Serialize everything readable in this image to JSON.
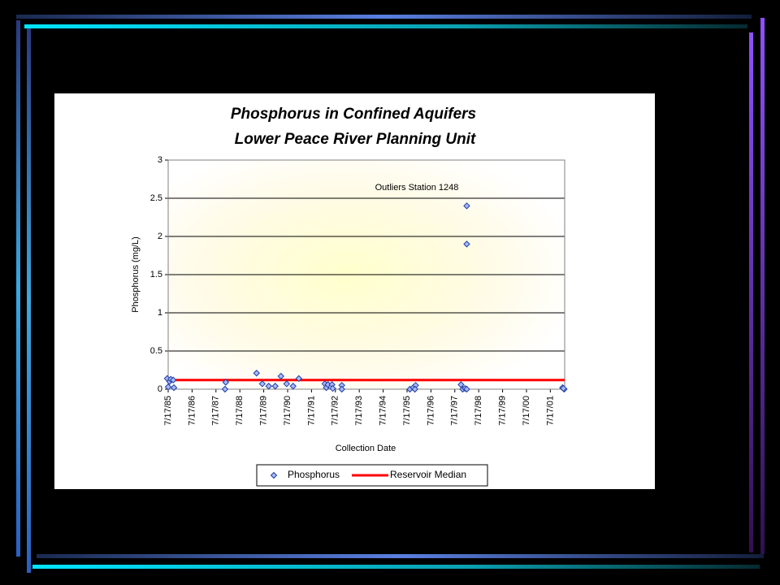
{
  "chart_data": {
    "type": "scatter",
    "title": "Phosphorus in Confined Aquifers",
    "subtitle": "Lower Peace River Planning Unit",
    "x_label": "Collection Date",
    "y_label": "Phosphorus (mg/L)",
    "annotation": "Outliers Station 1248",
    "xlim": [
      1985.54,
      2002.14
    ],
    "ylim": [
      0,
      3
    ],
    "yticks": [
      0,
      0.5,
      1,
      1.5,
      2,
      2.5,
      3
    ],
    "xticks": [
      {
        "value": 1985.54,
        "label": "7/17/85"
      },
      {
        "value": 1986.54,
        "label": "7/17/86"
      },
      {
        "value": 1987.54,
        "label": "7/17/87"
      },
      {
        "value": 1988.54,
        "label": "7/17/88"
      },
      {
        "value": 1989.54,
        "label": "7/17/89"
      },
      {
        "value": 1990.54,
        "label": "7/17/90"
      },
      {
        "value": 1991.54,
        "label": "7/17/91"
      },
      {
        "value": 1992.54,
        "label": "7/17/92"
      },
      {
        "value": 1993.54,
        "label": "7/17/93"
      },
      {
        "value": 1994.54,
        "label": "7/17/94"
      },
      {
        "value": 1995.54,
        "label": "7/17/95"
      },
      {
        "value": 1996.54,
        "label": "7/17/96"
      },
      {
        "value": 1997.54,
        "label": "7/17/97"
      },
      {
        "value": 1998.54,
        "label": "7/17/98"
      },
      {
        "value": 1999.54,
        "label": "7/17/99"
      },
      {
        "value": 2000.54,
        "label": "7/17/00"
      },
      {
        "value": 2001.54,
        "label": "7/17/01"
      }
    ],
    "grid": true,
    "series": [
      {
        "name": "Phosphorus",
        "color": "#aab8ff",
        "x": [
          1985.5,
          1985.6,
          1985.65,
          1985.54,
          1985.75,
          1985.78,
          1987.95,
          1987.92,
          1989.24,
          1989.48,
          1989.75,
          1990.02,
          1990.26,
          1990.5,
          1990.77,
          1991.01,
          1992.1,
          1992.16,
          1992.23,
          1992.4,
          1992.43,
          1992.81,
          1992.81,
          1995.66,
          1995.8,
          1995.9,
          1995.87,
          1997.8,
          1997.87,
          1997.97,
          1998.04,
          1998.04,
          1998.04,
          2002.05,
          2002.12,
          2002.09
        ],
        "values": [
          0.14,
          0.1,
          0.13,
          0.03,
          0.12,
          0.02,
          0.09,
          0,
          0.21,
          0.07,
          0.04,
          0.04,
          0.17,
          0.07,
          0.04,
          0.14,
          0.07,
          0.02,
          0.06,
          0.06,
          0.01,
          0.05,
          0,
          0,
          0.02,
          0.05,
          0,
          0.06,
          0,
          0.01,
          0,
          2.4,
          1.9,
          0.02,
          0,
          0.01
        ]
      }
    ],
    "reference_line": {
      "name": "Reservoir Median",
      "value": 0.12,
      "color": "#ff0000"
    }
  }
}
